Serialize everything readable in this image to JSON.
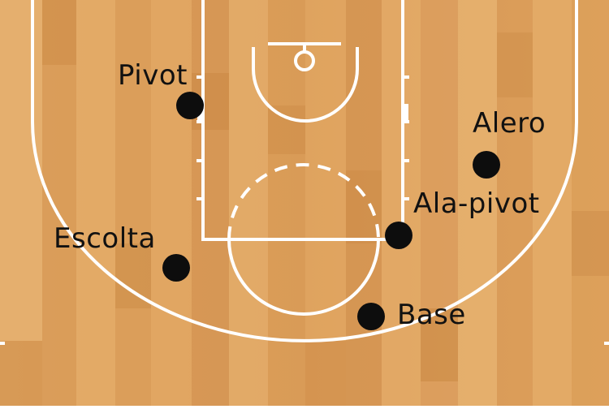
{
  "court": {
    "wood_light": "#e8b06b",
    "wood_dark": "#cf8f4d",
    "line_color": "#ffffff",
    "dot_color": "#0d0d0d"
  },
  "positions": [
    {
      "id": "pivot",
      "label": "Pivot"
    },
    {
      "id": "alero",
      "label": "Alero"
    },
    {
      "id": "ala-pivot",
      "label": "Ala-pivot"
    },
    {
      "id": "escolta",
      "label": "Escolta"
    },
    {
      "id": "base",
      "label": "Base"
    }
  ]
}
